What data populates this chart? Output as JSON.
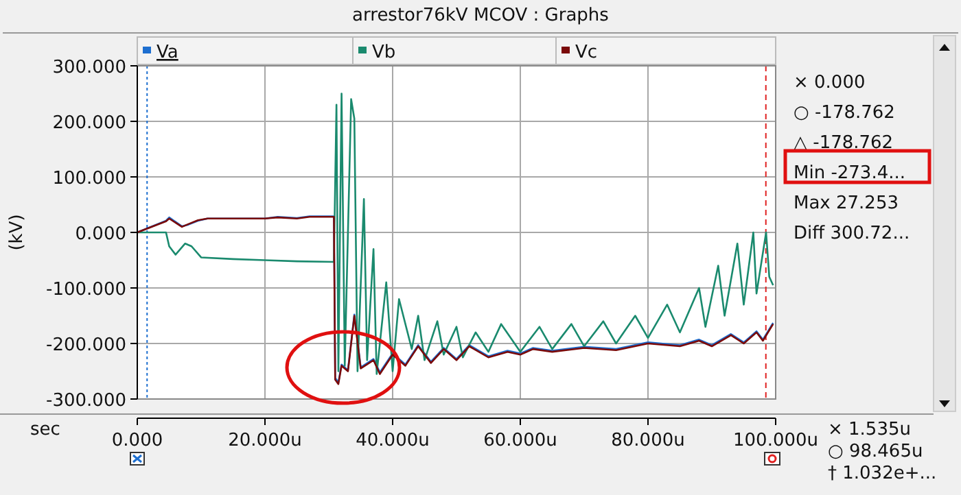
{
  "chart_data": {
    "type": "line",
    "title": "arrestor76kV  MCOV : Graphs",
    "xlabel": "sec",
    "ylabel": "(kV)",
    "xlim": [
      0,
      100
    ],
    "ylim": [
      -300,
      300
    ],
    "xticks": [
      {
        "value": 0,
        "label": "0.000"
      },
      {
        "value": 20,
        "label": "20.000u"
      },
      {
        "value": 40,
        "label": "40.000u"
      },
      {
        "value": 60,
        "label": "60.000u"
      },
      {
        "value": 80,
        "label": "80.000u"
      },
      {
        "value": 100,
        "label": "100.000u"
      }
    ],
    "yticks": [
      {
        "value": -300,
        "label": "-300.000"
      },
      {
        "value": -200,
        "label": "-200.000"
      },
      {
        "value": -100,
        "label": "-100.000"
      },
      {
        "value": 0,
        "label": "0.000"
      },
      {
        "value": 100,
        "label": "100.000"
      },
      {
        "value": 200,
        "label": "200.000"
      },
      {
        "value": 300,
        "label": "300.000"
      }
    ],
    "grid": true,
    "legend": "top",
    "line_style": "solid",
    "marker": "none",
    "series": [
      {
        "name": "Va",
        "color": "#1e6fd0",
        "x": [
          0,
          4.5,
          5,
          7,
          8,
          9.5,
          11,
          20,
          22,
          25,
          27,
          30.8,
          31,
          31.5,
          32,
          33,
          34,
          35,
          37,
          38,
          40,
          42,
          44,
          46,
          48,
          50,
          52,
          55,
          58,
          60,
          62,
          65,
          70,
          75,
          80,
          85,
          88,
          90,
          93,
          95,
          97,
          98,
          99.6
        ],
        "values": [
          0,
          21,
          27,
          11,
          14,
          21,
          25,
          25,
          28,
          26,
          29,
          29,
          -262,
          -270,
          -238,
          -248,
          -148,
          -243,
          -228,
          -252,
          -218,
          -238,
          -203,
          -233,
          -208,
          -228,
          -203,
          -223,
          -213,
          -218,
          -208,
          -213,
          -206,
          -210,
          -198,
          -203,
          -193,
          -203,
          -183,
          -198,
          -178,
          -193,
          -163
        ]
      },
      {
        "name": "Vb",
        "color": "#1a8a6e",
        "x": [
          0,
          4.5,
          5,
          6,
          7.5,
          8.5,
          10,
          15,
          20,
          25,
          30.8,
          31.2,
          31.5,
          32,
          32.5,
          33.5,
          34,
          34.5,
          35.5,
          36,
          37,
          37.5,
          39,
          40,
          41,
          43,
          44,
          45,
          47,
          48,
          50,
          51,
          53,
          55,
          57,
          60,
          63,
          65,
          68,
          70,
          73,
          75,
          78,
          80,
          83,
          85,
          88,
          89,
          91,
          92,
          94,
          95,
          96.5,
          97,
          98.5,
          99,
          99.6
        ],
        "values": [
          0,
          0,
          -25,
          -40,
          -20,
          -25,
          -45,
          -48,
          -50,
          -52,
          -53,
          230,
          -250,
          250,
          -240,
          240,
          205,
          -250,
          60,
          -230,
          -30,
          -255,
          -90,
          -250,
          -120,
          -210,
          -150,
          -230,
          -160,
          -220,
          -170,
          -225,
          -180,
          -215,
          -165,
          -215,
          -170,
          -210,
          -165,
          -205,
          -160,
          -200,
          -150,
          -190,
          -130,
          -180,
          -100,
          -170,
          -60,
          -150,
          -20,
          -130,
          0,
          -110,
          0,
          -80,
          -95
        ]
      },
      {
        "name": "Vc",
        "color": "#7a0a0a",
        "x": [
          0,
          4.5,
          5,
          7,
          8,
          9.5,
          11,
          20,
          22,
          25,
          27,
          30.8,
          31,
          31.5,
          32,
          33,
          34,
          35,
          37,
          38,
          40,
          42,
          44,
          46,
          48,
          50,
          52,
          55,
          58,
          60,
          62,
          65,
          70,
          75,
          80,
          85,
          88,
          90,
          93,
          95,
          97,
          98,
          99.6
        ],
        "values": [
          0,
          20,
          25,
          10,
          15,
          22,
          25,
          25,
          27,
          25,
          28,
          28,
          -265,
          -273,
          -240,
          -250,
          -150,
          -245,
          -230,
          -255,
          -220,
          -240,
          -205,
          -235,
          -210,
          -230,
          -205,
          -225,
          -215,
          -220,
          -210,
          -215,
          -208,
          -212,
          -200,
          -205,
          -195,
          -205,
          -185,
          -200,
          -180,
          -195,
          -165
        ]
      }
    ],
    "ref_lines": [
      {
        "axis": "x",
        "value": 1.535,
        "color": "#1e6fd0",
        "line_style": "dotted"
      },
      {
        "axis": "x",
        "value": 98.465,
        "color": "#e02020",
        "line_style": "dashed"
      }
    ],
    "annotations": [
      "× 0.000",
      "○ -178.762",
      "△ -178.762",
      "Min -273.4...",
      "Max 27.253",
      "Diff 300.72...",
      "× 1.535u",
      "○ 98.465u",
      "† 1.032e+..."
    ]
  }
}
